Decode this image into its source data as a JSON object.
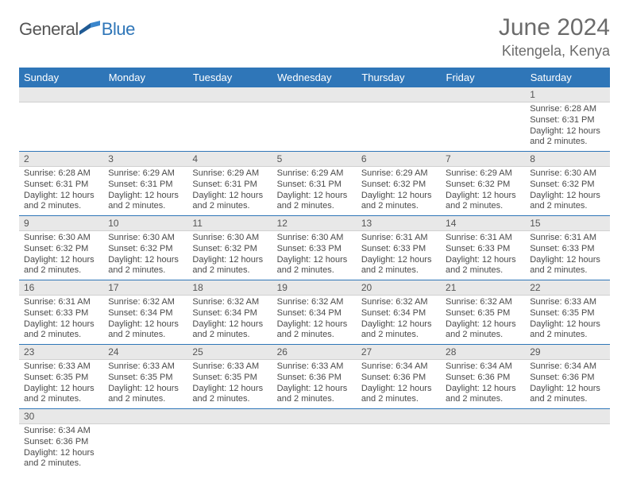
{
  "logo": {
    "text1": "General",
    "text2": "Blue"
  },
  "title": "June 2024",
  "location": "Kitengela, Kenya",
  "colors": {
    "header_bg": "#2f76b8",
    "header_text": "#ffffff",
    "daynum_bg": "#e8e8e8",
    "text": "#4a4a4a",
    "row_border": "#2f76b8",
    "logo_blue": "#2f76b8",
    "background": "#ffffff"
  },
  "typography": {
    "title_fontsize": 30,
    "location_fontsize": 18,
    "weekday_fontsize": 13,
    "daynum_fontsize": 12,
    "body_fontsize": 11
  },
  "weekdays": [
    "Sunday",
    "Monday",
    "Tuesday",
    "Wednesday",
    "Thursday",
    "Friday",
    "Saturday"
  ],
  "labels": {
    "sunrise": "Sunrise:",
    "sunset": "Sunset:",
    "daylight": "Daylight:"
  },
  "weeks": [
    [
      null,
      null,
      null,
      null,
      null,
      null,
      {
        "d": "1",
        "sunrise": "6:28 AM",
        "sunset": "6:31 PM",
        "daylight": "12 hours and 2 minutes."
      }
    ],
    [
      {
        "d": "2",
        "sunrise": "6:28 AM",
        "sunset": "6:31 PM",
        "daylight": "12 hours and 2 minutes."
      },
      {
        "d": "3",
        "sunrise": "6:29 AM",
        "sunset": "6:31 PM",
        "daylight": "12 hours and 2 minutes."
      },
      {
        "d": "4",
        "sunrise": "6:29 AM",
        "sunset": "6:31 PM",
        "daylight": "12 hours and 2 minutes."
      },
      {
        "d": "5",
        "sunrise": "6:29 AM",
        "sunset": "6:31 PM",
        "daylight": "12 hours and 2 minutes."
      },
      {
        "d": "6",
        "sunrise": "6:29 AM",
        "sunset": "6:32 PM",
        "daylight": "12 hours and 2 minutes."
      },
      {
        "d": "7",
        "sunrise": "6:29 AM",
        "sunset": "6:32 PM",
        "daylight": "12 hours and 2 minutes."
      },
      {
        "d": "8",
        "sunrise": "6:30 AM",
        "sunset": "6:32 PM",
        "daylight": "12 hours and 2 minutes."
      }
    ],
    [
      {
        "d": "9",
        "sunrise": "6:30 AM",
        "sunset": "6:32 PM",
        "daylight": "12 hours and 2 minutes."
      },
      {
        "d": "10",
        "sunrise": "6:30 AM",
        "sunset": "6:32 PM",
        "daylight": "12 hours and 2 minutes."
      },
      {
        "d": "11",
        "sunrise": "6:30 AM",
        "sunset": "6:32 PM",
        "daylight": "12 hours and 2 minutes."
      },
      {
        "d": "12",
        "sunrise": "6:30 AM",
        "sunset": "6:33 PM",
        "daylight": "12 hours and 2 minutes."
      },
      {
        "d": "13",
        "sunrise": "6:31 AM",
        "sunset": "6:33 PM",
        "daylight": "12 hours and 2 minutes."
      },
      {
        "d": "14",
        "sunrise": "6:31 AM",
        "sunset": "6:33 PM",
        "daylight": "12 hours and 2 minutes."
      },
      {
        "d": "15",
        "sunrise": "6:31 AM",
        "sunset": "6:33 PM",
        "daylight": "12 hours and 2 minutes."
      }
    ],
    [
      {
        "d": "16",
        "sunrise": "6:31 AM",
        "sunset": "6:33 PM",
        "daylight": "12 hours and 2 minutes."
      },
      {
        "d": "17",
        "sunrise": "6:32 AM",
        "sunset": "6:34 PM",
        "daylight": "12 hours and 2 minutes."
      },
      {
        "d": "18",
        "sunrise": "6:32 AM",
        "sunset": "6:34 PM",
        "daylight": "12 hours and 2 minutes."
      },
      {
        "d": "19",
        "sunrise": "6:32 AM",
        "sunset": "6:34 PM",
        "daylight": "12 hours and 2 minutes."
      },
      {
        "d": "20",
        "sunrise": "6:32 AM",
        "sunset": "6:34 PM",
        "daylight": "12 hours and 2 minutes."
      },
      {
        "d": "21",
        "sunrise": "6:32 AM",
        "sunset": "6:35 PM",
        "daylight": "12 hours and 2 minutes."
      },
      {
        "d": "22",
        "sunrise": "6:33 AM",
        "sunset": "6:35 PM",
        "daylight": "12 hours and 2 minutes."
      }
    ],
    [
      {
        "d": "23",
        "sunrise": "6:33 AM",
        "sunset": "6:35 PM",
        "daylight": "12 hours and 2 minutes."
      },
      {
        "d": "24",
        "sunrise": "6:33 AM",
        "sunset": "6:35 PM",
        "daylight": "12 hours and 2 minutes."
      },
      {
        "d": "25",
        "sunrise": "6:33 AM",
        "sunset": "6:35 PM",
        "daylight": "12 hours and 2 minutes."
      },
      {
        "d": "26",
        "sunrise": "6:33 AM",
        "sunset": "6:36 PM",
        "daylight": "12 hours and 2 minutes."
      },
      {
        "d": "27",
        "sunrise": "6:34 AM",
        "sunset": "6:36 PM",
        "daylight": "12 hours and 2 minutes."
      },
      {
        "d": "28",
        "sunrise": "6:34 AM",
        "sunset": "6:36 PM",
        "daylight": "12 hours and 2 minutes."
      },
      {
        "d": "29",
        "sunrise": "6:34 AM",
        "sunset": "6:36 PM",
        "daylight": "12 hours and 2 minutes."
      }
    ],
    [
      {
        "d": "30",
        "sunrise": "6:34 AM",
        "sunset": "6:36 PM",
        "daylight": "12 hours and 2 minutes."
      },
      null,
      null,
      null,
      null,
      null,
      null
    ]
  ]
}
